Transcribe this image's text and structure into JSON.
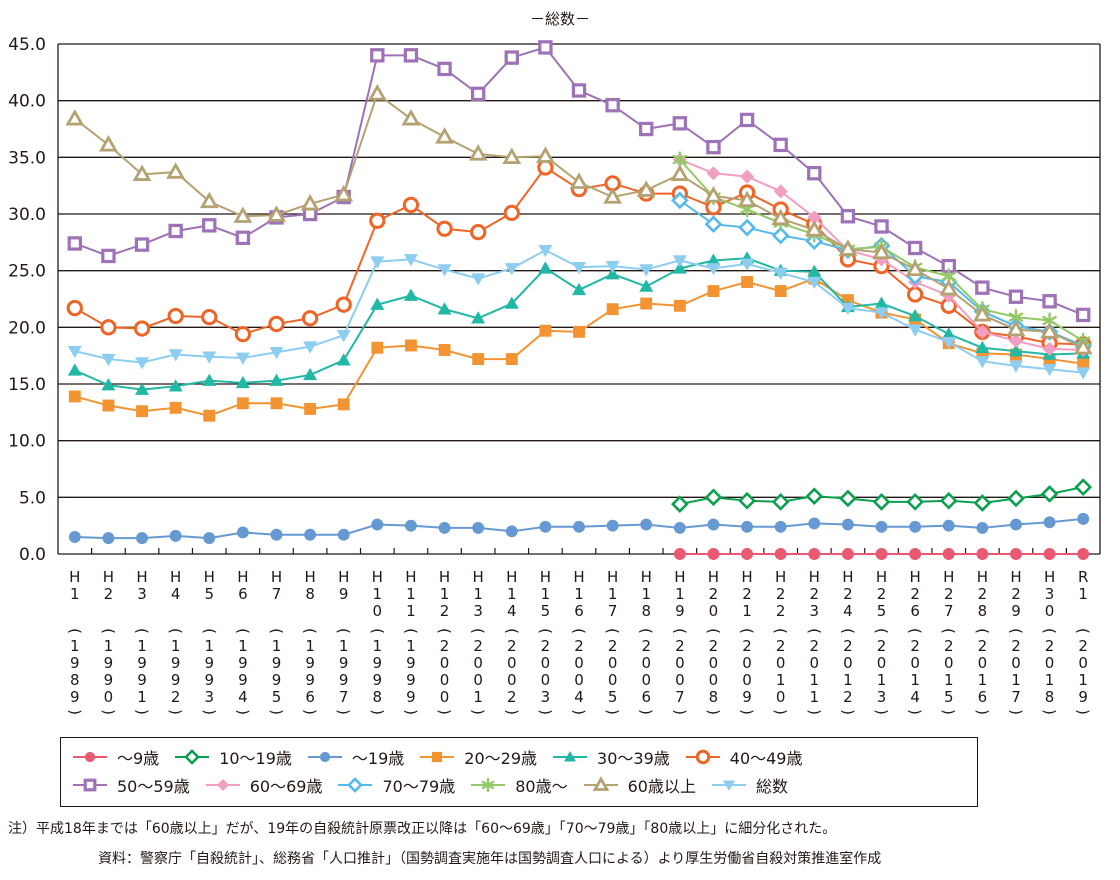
{
  "chart_data": {
    "type": "line",
    "title": "－総数－",
    "xlabel": "",
    "ylabel": "",
    "ylim": [
      0,
      45
    ],
    "yticks": [
      "0.0",
      "5.0",
      "10.0",
      "15.0",
      "20.0",
      "25.0",
      "30.0",
      "35.0",
      "40.0",
      "45.0"
    ],
    "grid": true,
    "legend_position": "bottom",
    "categories": [
      {
        "era": [
          "H",
          "1"
        ],
        "year": "1989"
      },
      {
        "era": [
          "H",
          "2"
        ],
        "year": "1990"
      },
      {
        "era": [
          "H",
          "3"
        ],
        "year": "1991"
      },
      {
        "era": [
          "H",
          "4"
        ],
        "year": "1992"
      },
      {
        "era": [
          "H",
          "5"
        ],
        "year": "1993"
      },
      {
        "era": [
          "H",
          "6"
        ],
        "year": "1994"
      },
      {
        "era": [
          "H",
          "7"
        ],
        "year": "1995"
      },
      {
        "era": [
          "H",
          "8"
        ],
        "year": "1996"
      },
      {
        "era": [
          "H",
          "9"
        ],
        "year": "1997"
      },
      {
        "era": [
          "H",
          "1",
          "0"
        ],
        "year": "1998"
      },
      {
        "era": [
          "H",
          "1",
          "1"
        ],
        "year": "1999"
      },
      {
        "era": [
          "H",
          "1",
          "2"
        ],
        "year": "2000"
      },
      {
        "era": [
          "H",
          "1",
          "3"
        ],
        "year": "2001"
      },
      {
        "era": [
          "H",
          "1",
          "4"
        ],
        "year": "2002"
      },
      {
        "era": [
          "H",
          "1",
          "5"
        ],
        "year": "2003"
      },
      {
        "era": [
          "H",
          "1",
          "6"
        ],
        "year": "2004"
      },
      {
        "era": [
          "H",
          "1",
          "7"
        ],
        "year": "2005"
      },
      {
        "era": [
          "H",
          "1",
          "8"
        ],
        "year": "2006"
      },
      {
        "era": [
          "H",
          "1",
          "9"
        ],
        "year": "2007"
      },
      {
        "era": [
          "H",
          "2",
          "0"
        ],
        "year": "2008"
      },
      {
        "era": [
          "H",
          "2",
          "1"
        ],
        "year": "2009"
      },
      {
        "era": [
          "H",
          "2",
          "2"
        ],
        "year": "2010"
      },
      {
        "era": [
          "H",
          "2",
          "3"
        ],
        "year": "2011"
      },
      {
        "era": [
          "H",
          "2",
          "4"
        ],
        "year": "2012"
      },
      {
        "era": [
          "H",
          "2",
          "5"
        ],
        "year": "2013"
      },
      {
        "era": [
          "H",
          "2",
          "6"
        ],
        "year": "2014"
      },
      {
        "era": [
          "H",
          "2",
          "7"
        ],
        "year": "2015"
      },
      {
        "era": [
          "H",
          "2",
          "8"
        ],
        "year": "2016"
      },
      {
        "era": [
          "H",
          "2",
          "9"
        ],
        "year": "2017"
      },
      {
        "era": [
          "H",
          "3",
          "0"
        ],
        "year": "2018"
      },
      {
        "era": [
          "R",
          "1"
        ],
        "year": "2019"
      }
    ],
    "series": [
      {
        "name": "～9歳",
        "color": "#e95a72",
        "marker": "circle-filled",
        "values": [
          null,
          null,
          null,
          null,
          null,
          null,
          null,
          null,
          null,
          null,
          null,
          null,
          null,
          null,
          null,
          null,
          null,
          null,
          0.0,
          0.0,
          0.0,
          0.0,
          0.0,
          0.0,
          0.0,
          0.0,
          0.0,
          0.0,
          0.0,
          0.0,
          0.0
        ]
      },
      {
        "name": "10～19歳",
        "color": "#0aa04e",
        "marker": "diamond-open",
        "values": [
          null,
          null,
          null,
          null,
          null,
          null,
          null,
          null,
          null,
          null,
          null,
          null,
          null,
          null,
          null,
          null,
          null,
          null,
          4.4,
          5.0,
          4.7,
          4.6,
          5.1,
          4.9,
          4.6,
          4.6,
          4.7,
          4.5,
          4.9,
          5.3,
          5.9
        ]
      },
      {
        "name": "～19歳",
        "color": "#6699d2",
        "marker": "circle-filled",
        "values": [
          1.5,
          1.4,
          1.4,
          1.6,
          1.4,
          1.9,
          1.7,
          1.7,
          1.7,
          2.6,
          2.5,
          2.3,
          2.3,
          2.0,
          2.4,
          2.4,
          2.5,
          2.6,
          2.3,
          2.6,
          2.4,
          2.4,
          2.7,
          2.6,
          2.4,
          2.4,
          2.5,
          2.3,
          2.6,
          2.8,
          3.1
        ]
      },
      {
        "name": "20～29歳",
        "color": "#f39433",
        "marker": "square-filled",
        "values": [
          13.9,
          13.1,
          12.6,
          12.9,
          12.2,
          13.3,
          13.3,
          12.8,
          13.2,
          18.2,
          18.4,
          18.0,
          17.2,
          17.2,
          19.7,
          19.6,
          21.6,
          22.1,
          21.9,
          23.2,
          24.0,
          23.2,
          24.3,
          22.4,
          21.3,
          20.7,
          18.6,
          17.7,
          17.6,
          17.2,
          16.8
        ]
      },
      {
        "name": "30～39歳",
        "color": "#21b8a4",
        "marker": "triangle-up-filled",
        "values": [
          16.2,
          14.9,
          14.5,
          14.8,
          15.3,
          15.1,
          15.3,
          15.8,
          17.1,
          22.0,
          22.8,
          21.6,
          20.8,
          22.1,
          25.2,
          23.3,
          24.7,
          23.6,
          25.2,
          25.9,
          26.1,
          25.0,
          24.9,
          21.8,
          22.1,
          21.0,
          19.4,
          18.2,
          17.9,
          17.6,
          17.7
        ]
      },
      {
        "name": "40～49歳",
        "color": "#ef6527",
        "marker": "circle-open",
        "values": [
          21.7,
          20.0,
          19.9,
          21.0,
          20.9,
          19.4,
          20.3,
          20.8,
          22.0,
          29.4,
          30.8,
          28.7,
          28.4,
          30.1,
          34.1,
          32.2,
          32.7,
          31.8,
          31.8,
          30.6,
          31.9,
          30.4,
          29.1,
          26.0,
          25.4,
          22.9,
          21.9,
          19.6,
          19.2,
          18.6,
          18.5
        ]
      },
      {
        "name": "50～59歳",
        "color": "#9d72b6",
        "marker": "square-open",
        "values": [
          27.4,
          26.3,
          27.3,
          28.5,
          29.0,
          27.9,
          29.7,
          30.0,
          31.5,
          44.0,
          44.0,
          42.8,
          40.6,
          43.8,
          44.7,
          40.9,
          39.6,
          37.5,
          38.0,
          35.9,
          38.3,
          36.1,
          33.6,
          29.8,
          28.9,
          27.0,
          25.4,
          23.5,
          22.7,
          22.3,
          21.1
        ]
      },
      {
        "name": "60～69歳",
        "color": "#f19ec2",
        "marker": "diamond-filled",
        "values": [
          null,
          null,
          null,
          null,
          null,
          null,
          null,
          null,
          null,
          null,
          null,
          null,
          null,
          null,
          null,
          null,
          null,
          null,
          34.8,
          33.6,
          33.3,
          32.0,
          29.7,
          26.8,
          26.0,
          24.0,
          22.8,
          19.6,
          18.8,
          18.1,
          18.0
        ]
      },
      {
        "name": "70～79歳",
        "color": "#55b9ec",
        "marker": "diamond-open",
        "values": [
          null,
          null,
          null,
          null,
          null,
          null,
          null,
          null,
          null,
          null,
          null,
          null,
          null,
          null,
          null,
          null,
          null,
          null,
          31.2,
          29.1,
          28.8,
          28.1,
          27.6,
          26.8,
          27.2,
          24.5,
          24.0,
          21.4,
          20.1,
          19.6,
          18.4
        ]
      },
      {
        "name": "80歳～",
        "color": "#93c966",
        "marker": "asterisk",
        "values": [
          null,
          null,
          null,
          null,
          null,
          null,
          null,
          null,
          null,
          null,
          null,
          null,
          null,
          null,
          null,
          null,
          null,
          null,
          34.8,
          31.5,
          30.4,
          29.2,
          28.2,
          26.9,
          27.1,
          25.3,
          24.5,
          21.6,
          20.9,
          20.6,
          18.8
        ]
      },
      {
        "name": "60歳以上",
        "color": "#b5a272",
        "marker": "triangle-up-open",
        "values": [
          38.4,
          36.1,
          33.5,
          33.7,
          31.1,
          29.8,
          29.9,
          30.9,
          31.7,
          40.6,
          38.4,
          36.8,
          35.3,
          35.0,
          35.1,
          32.8,
          31.5,
          32.1,
          33.5,
          31.6,
          31.2,
          29.6,
          28.6,
          26.9,
          26.6,
          25.1,
          23.4,
          21.1,
          19.8,
          19.6,
          18.2
        ]
      },
      {
        "name": "総数",
        "color": "#8dcdf0",
        "marker": "triangle-down-filled",
        "values": [
          17.9,
          17.2,
          16.9,
          17.6,
          17.4,
          17.3,
          17.8,
          18.3,
          19.3,
          25.8,
          26.0,
          25.1,
          24.3,
          25.2,
          26.8,
          25.3,
          25.4,
          25.1,
          25.9,
          25.2,
          25.6,
          24.8,
          24.0,
          21.7,
          21.3,
          19.8,
          18.7,
          17.0,
          16.6,
          16.3,
          16.0
        ]
      }
    ],
    "annotations": []
  },
  "notes": {
    "note1": "注）平成18年までは「60歳以上」だが、19年の自殺統計原票改正以降は「60～69歳」「70～79歳」「80歳以上」に細分化された。",
    "source": "資料：警察庁「自殺統計」、総務省「人口推計」（国勢調査実施年は国勢調査人口による）より厚生労働省自殺対策推進室作成"
  }
}
